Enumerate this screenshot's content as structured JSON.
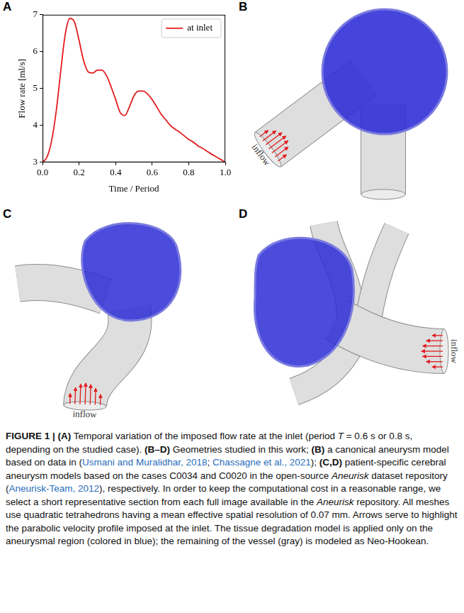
{
  "chart_data": {
    "type": "line",
    "x_label": "Time / Period",
    "y_label": "Flow rate [ml/s]",
    "x": [
      0,
      0.025,
      0.05,
      0.075,
      0.1,
      0.125,
      0.15,
      0.175,
      0.2,
      0.225,
      0.25,
      0.275,
      0.3,
      0.325,
      0.35,
      0.375,
      0.4,
      0.425,
      0.45,
      0.475,
      0.5,
      0.525,
      0.55,
      0.575,
      0.6,
      0.625,
      0.65,
      0.675,
      0.7,
      0.725,
      0.75,
      0.775,
      0.8,
      0.825,
      0.85,
      0.875,
      0.9,
      0.925,
      0.95,
      0.975,
      1.0
    ],
    "series": [
      {
        "name": "at inlet",
        "color": "#e31a1c",
        "line_style": "solid",
        "values": [
          3.0,
          3.15,
          3.6,
          4.4,
          5.5,
          6.5,
          6.9,
          6.8,
          6.3,
          5.75,
          5.45,
          5.42,
          5.5,
          5.5,
          5.35,
          5.05,
          4.7,
          4.35,
          4.27,
          4.5,
          4.8,
          4.93,
          4.93,
          4.85,
          4.7,
          4.5,
          4.3,
          4.15,
          4.0,
          3.9,
          3.82,
          3.72,
          3.62,
          3.55,
          3.45,
          3.38,
          3.3,
          3.22,
          3.15,
          3.08,
          3.0
        ]
      }
    ],
    "xlim": [
      0,
      1
    ],
    "xticks": [
      {
        "value": 0,
        "label": "0.0"
      },
      {
        "value": 0.2,
        "label": "0.2"
      },
      {
        "value": 0.4,
        "label": "0.4"
      },
      {
        "value": 0.6,
        "label": "0.6"
      },
      {
        "value": 0.8,
        "label": "0.8"
      },
      {
        "value": 1,
        "label": "1.0"
      }
    ],
    "ylim": [
      3,
      7
    ],
    "yticks": [
      3,
      4,
      5,
      6,
      7
    ],
    "grid": false,
    "legend": "upper right"
  },
  "panels": [
    {
      "letter": "A"
    },
    {
      "letter": "B",
      "inlet_label": "inflow"
    },
    {
      "letter": "C",
      "inlet_label": "inflow"
    },
    {
      "letter": "D",
      "inlet_label": "inflow"
    }
  ],
  "caption": [
    {
      "text": "FIGURE 1 | (A)",
      "style": "bold"
    },
    {
      "text": " Temporal variation of the imposed flow rate at the inlet (period ",
      "style": "normal"
    },
    {
      "text": "T",
      "style": "italic"
    },
    {
      "text": " = 0.6 s or 0.8 s, depending on the studied case). ",
      "style": "normal"
    },
    {
      "text": "(B–D)",
      "style": "bold"
    },
    {
      "text": " Geometries studied in this work; ",
      "style": "normal"
    },
    {
      "text": "(B)",
      "style": "bold"
    },
    {
      "text": " a canonical aneurysm model based on data in (",
      "style": "normal"
    },
    {
      "text": "Usmani and Muralidhar, 2018",
      "style": "link"
    },
    {
      "text": "; ",
      "style": "normal"
    },
    {
      "text": "Chassagne et al., 2021",
      "style": "link"
    },
    {
      "text": "); ",
      "style": "normal"
    },
    {
      "text": "(C,D)",
      "style": "bold"
    },
    {
      "text": " patient-specific cerebral aneurysm models based on the cases C0034 and C0020 in the open-source ",
      "style": "normal"
    },
    {
      "text": "Aneurisk",
      "style": "italic"
    },
    {
      "text": " dataset repository (",
      "style": "normal"
    },
    {
      "text": "Aneurisk-Team, 2012",
      "style": "link"
    },
    {
      "text": "), respectively. In order to keep the computational cost in a reasonable range, we select a short representative section from each full image available in the ",
      "style": "normal"
    },
    {
      "text": "Aneurisk",
      "style": "italic"
    },
    {
      "text": " repository. All meshes use quadratic tetrahedrons having a mean effective spatial resolution of 0.07 mm. Arrows serve to highlight the parabolic velocity profile imposed at the inlet. The tissue degradation model is applied only on the aneurysmal region (colored in blue); the remaining of the vessel (gray) is modeled as Neo-Hookean.",
      "style": "normal"
    }
  ]
}
